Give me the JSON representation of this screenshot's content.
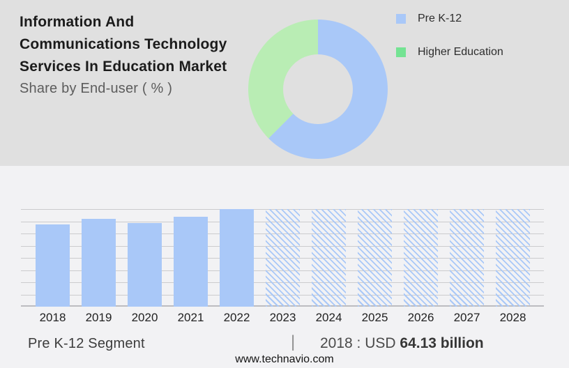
{
  "header": {
    "title_lines": [
      "Information And",
      "Communications Technology",
      "Services In Education Market"
    ],
    "subtitle": "Share by End-user ( % )"
  },
  "legend": {
    "items": [
      {
        "label": "Pre K-12",
        "color": "#a9c8f8"
      },
      {
        "label": "Higher Education",
        "color": "#74e393"
      }
    ]
  },
  "chart_data": [
    {
      "type": "pie",
      "donut": true,
      "title": "Share by End-user ( % )",
      "labels": [
        "Pre K-12",
        "Higher Education"
      ],
      "values": [
        62.5,
        37.5
      ],
      "colors": [
        "#a9c8f8",
        "#b9edb4"
      ],
      "legend_position": "right",
      "start_angle_deg": 0,
      "direction": "clockwise"
    },
    {
      "type": "bar",
      "categories": [
        "2018",
        "2019",
        "2020",
        "2021",
        "2022",
        "2023",
        "2024",
        "2025",
        "2026",
        "2027",
        "2028"
      ],
      "values": [
        64.13,
        68.5,
        65.2,
        70.1,
        76.1,
        null,
        null,
        null,
        null,
        null,
        null
      ],
      "bar_styles": [
        "solid",
        "solid",
        "solid",
        "solid",
        "solid",
        "hatched",
        "hatched",
        "hatched",
        "hatched",
        "hatched",
        "hatched"
      ],
      "unit": "USD billion",
      "ylim": [
        0,
        76.1
      ],
      "grid": true,
      "gridline_count": 9,
      "bar_color": "#a9c8f8",
      "xlabel": "",
      "ylabel": ""
    }
  ],
  "footer": {
    "segment_label": "Pre K-12 Segment",
    "divider": "|",
    "value_prefix": "2018 : USD",
    "value_bold": "64.13 billion",
    "website": "www.technavio.com"
  },
  "colors": {
    "page_bg": "#f2f2f4",
    "panel_bg": "#e0e0e0",
    "bar_blue": "#a9c8f8",
    "donut_green": "#b9edb4",
    "legend_green": "#74e393",
    "gridline": "#cbcbcd",
    "baseline": "#bcbcc0",
    "title_text": "#1b1b1b",
    "subtitle_text": "#5c5c5c",
    "footer_text": "#3c3c3c"
  }
}
